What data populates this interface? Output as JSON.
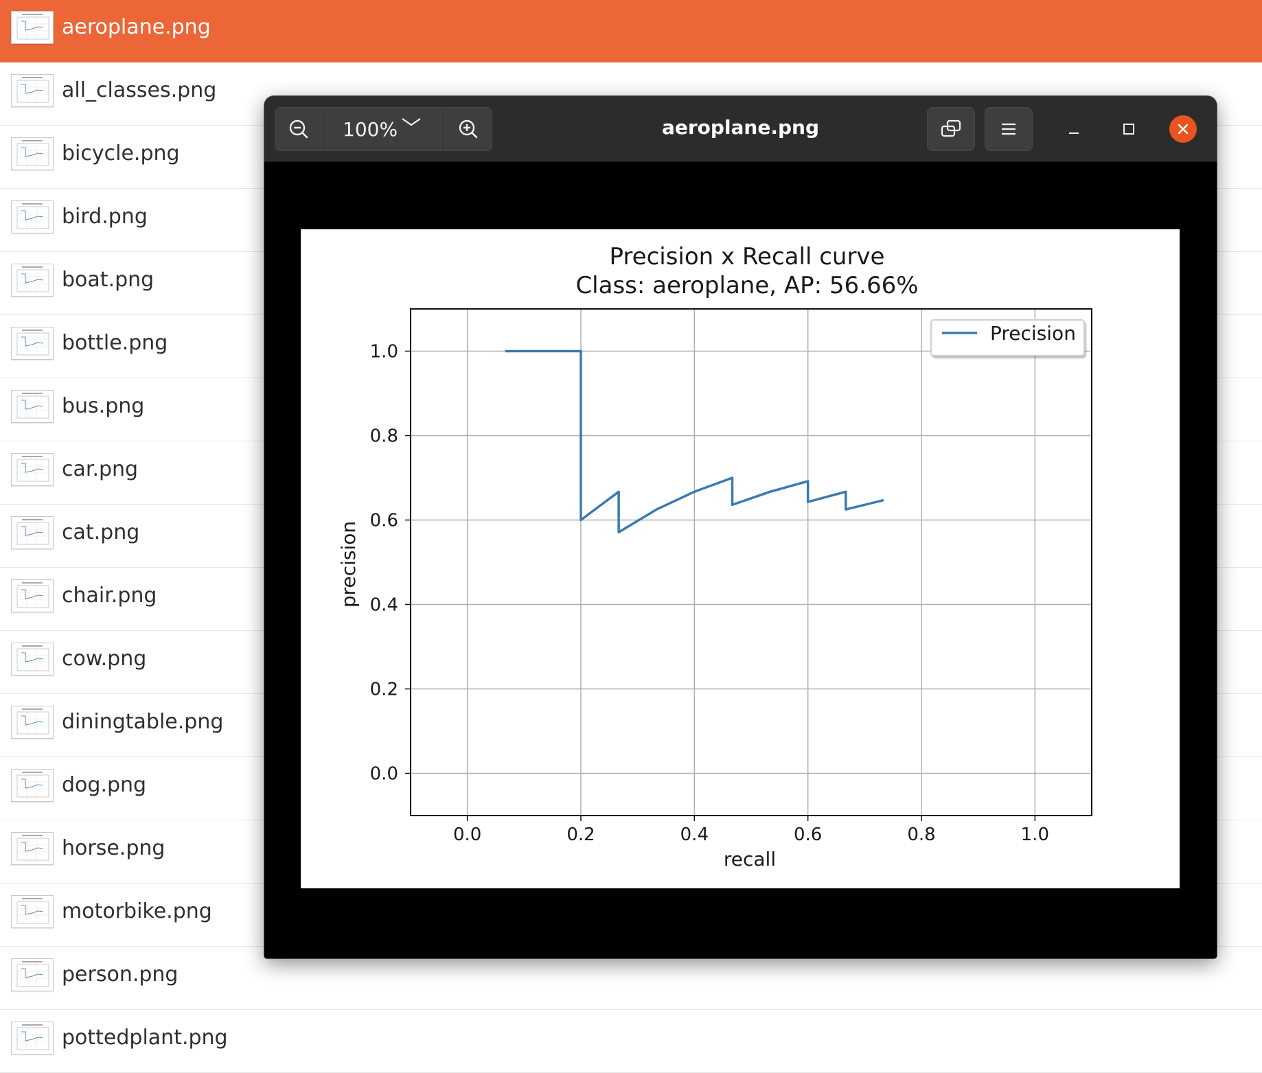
{
  "file_list": {
    "items": [
      {
        "name": "aeroplane.png",
        "selected": true
      },
      {
        "name": "all_classes.png"
      },
      {
        "name": "bicycle.png"
      },
      {
        "name": "bird.png"
      },
      {
        "name": "boat.png"
      },
      {
        "name": "bottle.png"
      },
      {
        "name": "bus.png"
      },
      {
        "name": "car.png"
      },
      {
        "name": "cat.png"
      },
      {
        "name": "chair.png"
      },
      {
        "name": "cow.png"
      },
      {
        "name": "diningtable.png"
      },
      {
        "name": "dog.png"
      },
      {
        "name": "horse.png"
      },
      {
        "name": "motorbike.png"
      },
      {
        "name": "person.png"
      },
      {
        "name": "pottedplant.png"
      }
    ],
    "selected_color": "#ec6638"
  },
  "viewer": {
    "title": "aeroplane.png",
    "zoom_level": "100%",
    "icons": {
      "zoom_out": "zoom-out-icon",
      "zoom_in": "zoom-in-icon",
      "zoom_dropdown": "chevron-down-icon",
      "rotate": "rotate-icon",
      "menu": "hamburger-menu-icon",
      "minimize": "minimize-icon",
      "maximize": "maximize-icon",
      "close": "close-icon"
    },
    "close_color": "#e95420"
  },
  "chart_data": {
    "type": "line",
    "title": "Precision x Recall curve",
    "subtitle": "Class: aeroplane, AP: 56.66%",
    "xlabel": "recall",
    "ylabel": "precision",
    "xlim": [
      -0.1,
      1.1
    ],
    "ylim": [
      -0.1,
      1.1
    ],
    "xticks": [
      0.0,
      0.2,
      0.4,
      0.6,
      0.8,
      1.0
    ],
    "yticks": [
      0.0,
      0.2,
      0.4,
      0.6,
      0.8,
      1.0
    ],
    "xtick_labels": [
      "0.0",
      "0.2",
      "0.4",
      "0.6",
      "0.8",
      "1.0"
    ],
    "ytick_labels": [
      "0.0",
      "0.2",
      "0.4",
      "0.6",
      "0.8",
      "1.0"
    ],
    "grid": true,
    "legend_position": "upper right",
    "series": [
      {
        "name": "Precision",
        "color": "#3a7ab0",
        "x": [
          0.0667,
          0.2,
          0.2,
          0.2667,
          0.2667,
          0.3333,
          0.4,
          0.4667,
          0.4667,
          0.5333,
          0.6,
          0.6,
          0.6667,
          0.6667,
          0.7333
        ],
        "y": [
          1.0,
          1.0,
          0.6,
          0.667,
          0.571,
          0.625,
          0.667,
          0.7,
          0.636,
          0.667,
          0.692,
          0.643,
          0.667,
          0.625,
          0.647
        ]
      }
    ]
  }
}
